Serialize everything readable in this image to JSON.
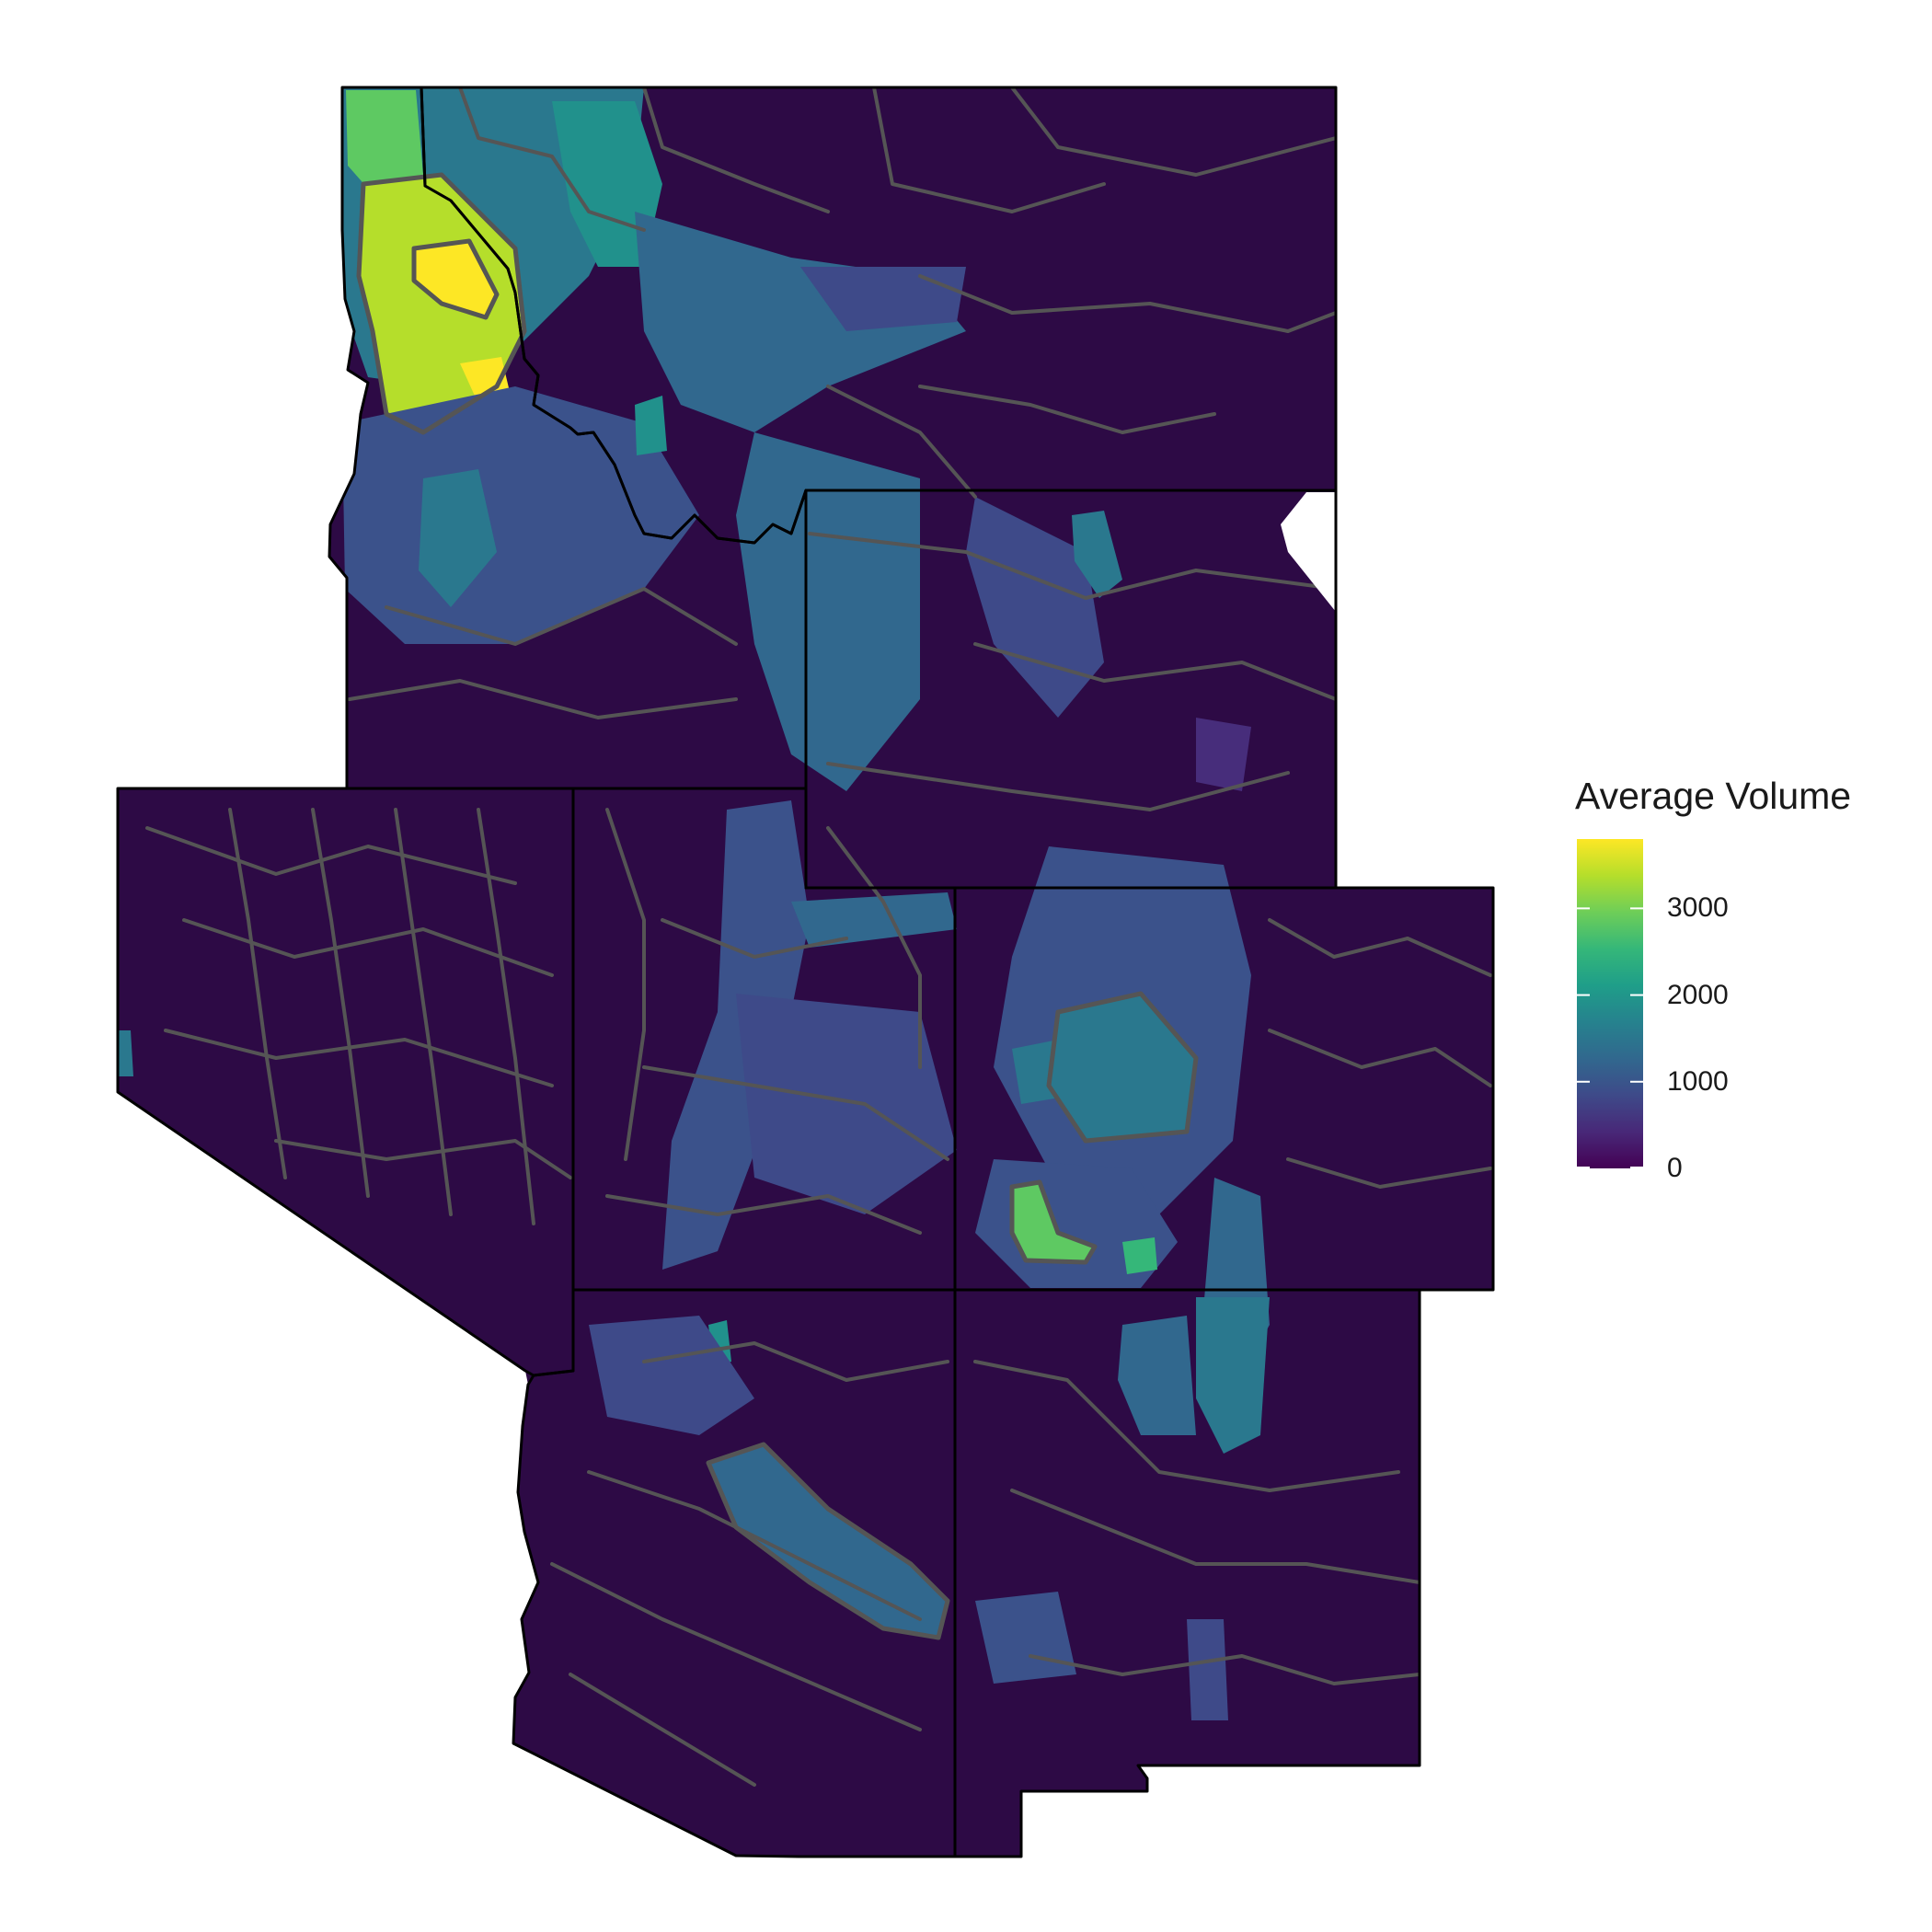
{
  "map": {
    "legend": {
      "title": "Average Volume",
      "value_min": 0,
      "value_max": 3800,
      "ticks": [
        {
          "value": 0,
          "label": "0"
        },
        {
          "value": 1000,
          "label": "1000"
        },
        {
          "value": 2000,
          "label": "2000"
        },
        {
          "value": 3000,
          "label": "3000"
        }
      ],
      "colormap": "viridis",
      "gradient_stops": [
        "#440154",
        "#482878",
        "#3e4a89",
        "#31688e",
        "#26828e",
        "#1f9e89",
        "#35b779",
        "#6ece58",
        "#b5de2b",
        "#fde725"
      ]
    },
    "colors": {
      "background_fill": "#2d0a45",
      "region_outline": "#555555",
      "state_outline": "#000000",
      "missing_fill": "#ffffff"
    },
    "states": [
      "Montana",
      "Idaho",
      "Wyoming",
      "Nevada",
      "Utah",
      "Colorado",
      "Arizona",
      "New Mexico"
    ]
  }
}
